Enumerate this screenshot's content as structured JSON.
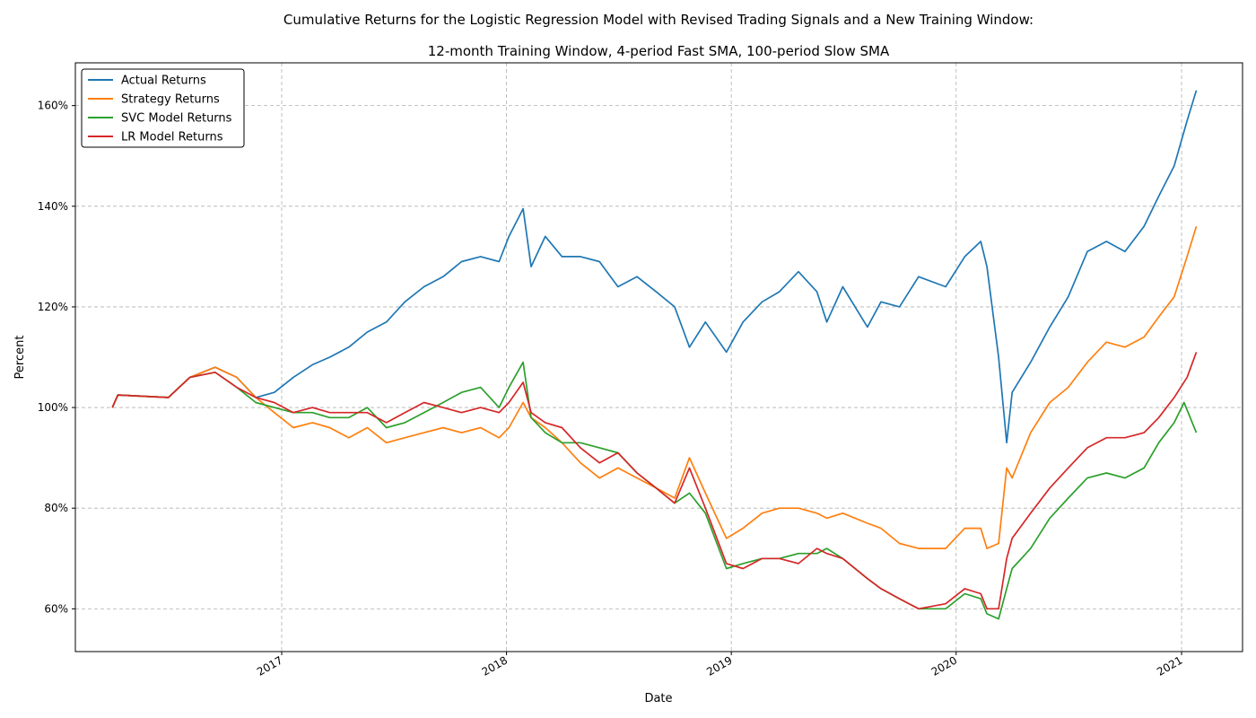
{
  "chart_data": {
    "type": "line",
    "title": "Cumulative Returns for the Logistic Regression Model with Revised Trading Signals and a New Training Window:",
    "subtitle": "12-month Training Window, 4-period Fast SMA, 100-period Slow SMA",
    "xlabel": "Date",
    "ylabel": "Percent",
    "x_ticks": [
      "2017",
      "2018",
      "2019",
      "2020",
      "2021"
    ],
    "y_ticks": [
      "60%",
      "80%",
      "100%",
      "120%",
      "140%",
      "160%"
    ],
    "y_tick_values": [
      60,
      80,
      100,
      120,
      140,
      160
    ],
    "xlim": [
      "2016-02-01",
      "2021-04-10"
    ],
    "ylim": [
      51.5,
      168.5
    ],
    "grid": true,
    "legend_position": "top-left",
    "series": [
      {
        "name": "Actual Returns",
        "color": "#1f77b4",
        "points": [
          [
            "2016-04-01",
            100
          ],
          [
            "2016-04-10",
            102.5
          ],
          [
            "2016-07-01",
            102
          ],
          [
            "2016-08-05",
            106
          ],
          [
            "2016-09-15",
            108
          ],
          [
            "2016-10-20",
            106
          ],
          [
            "2016-11-20",
            102
          ],
          [
            "2016-12-20",
            103
          ],
          [
            "2017-01-20",
            106
          ],
          [
            "2017-02-20",
            108.5
          ],
          [
            "2017-03-20",
            110
          ],
          [
            "2017-04-20",
            112
          ],
          [
            "2017-05-20",
            115
          ],
          [
            "2017-06-20",
            117
          ],
          [
            "2017-07-20",
            121
          ],
          [
            "2017-08-20",
            124
          ],
          [
            "2017-09-20",
            126
          ],
          [
            "2017-10-20",
            129
          ],
          [
            "2017-11-20",
            130
          ],
          [
            "2017-12-20",
            129
          ],
          [
            "2018-01-05",
            134
          ],
          [
            "2018-01-28",
            139.5
          ],
          [
            "2018-02-10",
            128
          ],
          [
            "2018-03-05",
            134
          ],
          [
            "2018-04-01",
            130
          ],
          [
            "2018-05-01",
            130
          ],
          [
            "2018-06-01",
            129
          ],
          [
            "2018-07-01",
            124
          ],
          [
            "2018-08-01",
            126
          ],
          [
            "2018-09-01",
            123
          ],
          [
            "2018-10-01",
            120
          ],
          [
            "2018-10-25",
            112
          ],
          [
            "2018-11-20",
            117
          ],
          [
            "2018-12-24",
            111
          ],
          [
            "2019-01-20",
            117
          ],
          [
            "2019-02-20",
            121
          ],
          [
            "2019-03-20",
            123
          ],
          [
            "2019-04-20",
            127
          ],
          [
            "2019-05-20",
            123
          ],
          [
            "2019-06-05",
            117
          ],
          [
            "2019-07-01",
            124
          ],
          [
            "2019-08-10",
            116
          ],
          [
            "2019-09-01",
            121
          ],
          [
            "2019-10-01",
            120
          ],
          [
            "2019-11-01",
            126
          ],
          [
            "2019-12-15",
            124
          ],
          [
            "2020-01-15",
            130
          ],
          [
            "2020-02-10",
            133
          ],
          [
            "2020-02-20",
            128
          ],
          [
            "2020-03-10",
            110
          ],
          [
            "2020-03-23",
            93
          ],
          [
            "2020-04-01",
            103
          ],
          [
            "2020-05-01",
            109
          ],
          [
            "2020-06-01",
            116
          ],
          [
            "2020-07-01",
            122
          ],
          [
            "2020-08-01",
            131
          ],
          [
            "2020-09-01",
            133
          ],
          [
            "2020-10-01",
            131
          ],
          [
            "2020-11-01",
            136
          ],
          [
            "2020-11-25",
            142
          ],
          [
            "2020-12-20",
            148
          ],
          [
            "2021-01-10",
            157
          ],
          [
            "2021-01-25",
            163
          ]
        ]
      },
      {
        "name": "Strategy Returns",
        "color": "#ff7f0e",
        "points": [
          [
            "2016-04-01",
            100
          ],
          [
            "2016-04-10",
            102.5
          ],
          [
            "2016-07-01",
            102
          ],
          [
            "2016-08-05",
            106
          ],
          [
            "2016-09-15",
            108
          ],
          [
            "2016-10-20",
            106
          ],
          [
            "2016-11-20",
            102
          ],
          [
            "2016-12-20",
            99
          ],
          [
            "2017-01-20",
            96
          ],
          [
            "2017-02-20",
            97
          ],
          [
            "2017-03-20",
            96
          ],
          [
            "2017-04-20",
            94
          ],
          [
            "2017-05-20",
            96
          ],
          [
            "2017-06-20",
            93
          ],
          [
            "2017-07-20",
            94
          ],
          [
            "2017-08-20",
            95
          ],
          [
            "2017-09-20",
            96
          ],
          [
            "2017-10-20",
            95
          ],
          [
            "2017-11-20",
            96
          ],
          [
            "2017-12-20",
            94
          ],
          [
            "2018-01-05",
            96
          ],
          [
            "2018-01-28",
            101
          ],
          [
            "2018-02-10",
            98
          ],
          [
            "2018-03-05",
            96
          ],
          [
            "2018-04-01",
            93
          ],
          [
            "2018-05-01",
            89
          ],
          [
            "2018-06-01",
            86
          ],
          [
            "2018-07-01",
            88
          ],
          [
            "2018-08-01",
            86
          ],
          [
            "2018-09-01",
            84
          ],
          [
            "2018-10-01",
            82
          ],
          [
            "2018-10-25",
            90
          ],
          [
            "2018-11-20",
            83
          ],
          [
            "2018-12-24",
            74
          ],
          [
            "2019-01-20",
            76
          ],
          [
            "2019-02-20",
            79
          ],
          [
            "2019-03-20",
            80
          ],
          [
            "2019-04-20",
            80
          ],
          [
            "2019-05-20",
            79
          ],
          [
            "2019-06-05",
            78
          ],
          [
            "2019-07-01",
            79
          ],
          [
            "2019-08-10",
            77
          ],
          [
            "2019-09-01",
            76
          ],
          [
            "2019-10-01",
            73
          ],
          [
            "2019-11-01",
            72
          ],
          [
            "2019-12-15",
            72
          ],
          [
            "2020-01-15",
            76
          ],
          [
            "2020-02-10",
            76
          ],
          [
            "2020-02-20",
            72
          ],
          [
            "2020-03-10",
            73
          ],
          [
            "2020-03-23",
            88
          ],
          [
            "2020-04-01",
            86
          ],
          [
            "2020-05-01",
            95
          ],
          [
            "2020-06-01",
            101
          ],
          [
            "2020-07-01",
            104
          ],
          [
            "2020-08-01",
            109
          ],
          [
            "2020-09-01",
            113
          ],
          [
            "2020-10-01",
            112
          ],
          [
            "2020-11-01",
            114
          ],
          [
            "2020-11-25",
            118
          ],
          [
            "2020-12-20",
            122
          ],
          [
            "2021-01-10",
            130
          ],
          [
            "2021-01-25",
            136
          ]
        ]
      },
      {
        "name": "SVC Model Returns",
        "color": "#2ca02c",
        "points": [
          [
            "2016-04-01",
            100
          ],
          [
            "2016-04-10",
            102.5
          ],
          [
            "2016-07-01",
            102
          ],
          [
            "2016-08-05",
            106
          ],
          [
            "2016-09-15",
            107
          ],
          [
            "2016-10-20",
            104
          ],
          [
            "2016-11-20",
            101
          ],
          [
            "2016-12-20",
            100
          ],
          [
            "2017-01-20",
            99
          ],
          [
            "2017-02-20",
            99
          ],
          [
            "2017-03-20",
            98
          ],
          [
            "2017-04-20",
            98
          ],
          [
            "2017-05-20",
            100
          ],
          [
            "2017-06-20",
            96
          ],
          [
            "2017-07-20",
            97
          ],
          [
            "2017-08-20",
            99
          ],
          [
            "2017-09-20",
            101
          ],
          [
            "2017-10-20",
            103
          ],
          [
            "2017-11-20",
            104
          ],
          [
            "2017-12-20",
            100
          ],
          [
            "2018-01-05",
            104
          ],
          [
            "2018-01-28",
            109
          ],
          [
            "2018-02-10",
            98
          ],
          [
            "2018-03-05",
            95
          ],
          [
            "2018-04-01",
            93
          ],
          [
            "2018-05-01",
            93
          ],
          [
            "2018-06-01",
            92
          ],
          [
            "2018-07-01",
            91
          ],
          [
            "2018-08-01",
            87
          ],
          [
            "2018-09-01",
            84
          ],
          [
            "2018-10-01",
            81
          ],
          [
            "2018-10-25",
            83
          ],
          [
            "2018-11-20",
            79
          ],
          [
            "2018-12-24",
            68
          ],
          [
            "2019-01-20",
            69
          ],
          [
            "2019-02-20",
            70
          ],
          [
            "2019-03-20",
            70
          ],
          [
            "2019-04-20",
            71
          ],
          [
            "2019-05-20",
            71
          ],
          [
            "2019-06-05",
            72
          ],
          [
            "2019-07-01",
            70
          ],
          [
            "2019-08-10",
            66
          ],
          [
            "2019-09-01",
            64
          ],
          [
            "2019-10-01",
            62
          ],
          [
            "2019-11-01",
            60
          ],
          [
            "2019-12-15",
            60
          ],
          [
            "2020-01-15",
            63
          ],
          [
            "2020-02-10",
            62
          ],
          [
            "2020-02-20",
            59
          ],
          [
            "2020-03-10",
            58
          ],
          [
            "2020-03-23",
            64
          ],
          [
            "2020-04-01",
            68
          ],
          [
            "2020-05-01",
            72
          ],
          [
            "2020-06-01",
            78
          ],
          [
            "2020-07-01",
            82
          ],
          [
            "2020-08-01",
            86
          ],
          [
            "2020-09-01",
            87
          ],
          [
            "2020-10-01",
            86
          ],
          [
            "2020-11-01",
            88
          ],
          [
            "2020-11-25",
            93
          ],
          [
            "2020-12-20",
            97
          ],
          [
            "2021-01-05",
            101
          ],
          [
            "2021-01-25",
            95
          ]
        ]
      },
      {
        "name": "LR Model Returns",
        "color": "#d62728",
        "points": [
          [
            "2016-04-01",
            100
          ],
          [
            "2016-04-10",
            102.5
          ],
          [
            "2016-07-01",
            102
          ],
          [
            "2016-08-05",
            106
          ],
          [
            "2016-09-15",
            107
          ],
          [
            "2016-10-20",
            104
          ],
          [
            "2016-11-20",
            102
          ],
          [
            "2016-12-20",
            101
          ],
          [
            "2017-01-20",
            99
          ],
          [
            "2017-02-20",
            100
          ],
          [
            "2017-03-20",
            99
          ],
          [
            "2017-04-20",
            99
          ],
          [
            "2017-05-20",
            99
          ],
          [
            "2017-06-20",
            97
          ],
          [
            "2017-07-20",
            99
          ],
          [
            "2017-08-20",
            101
          ],
          [
            "2017-09-20",
            100
          ],
          [
            "2017-10-20",
            99
          ],
          [
            "2017-11-20",
            100
          ],
          [
            "2017-12-20",
            99
          ],
          [
            "2018-01-05",
            101
          ],
          [
            "2018-01-28",
            105
          ],
          [
            "2018-02-10",
            99
          ],
          [
            "2018-03-05",
            97
          ],
          [
            "2018-04-01",
            96
          ],
          [
            "2018-05-01",
            92
          ],
          [
            "2018-06-01",
            89
          ],
          [
            "2018-07-01",
            91
          ],
          [
            "2018-08-01",
            87
          ],
          [
            "2018-09-01",
            84
          ],
          [
            "2018-10-01",
            81
          ],
          [
            "2018-10-25",
            88
          ],
          [
            "2018-11-20",
            80
          ],
          [
            "2018-12-24",
            69
          ],
          [
            "2019-01-20",
            68
          ],
          [
            "2019-02-20",
            70
          ],
          [
            "2019-03-20",
            70
          ],
          [
            "2019-04-20",
            69
          ],
          [
            "2019-05-20",
            72
          ],
          [
            "2019-06-05",
            71
          ],
          [
            "2019-07-01",
            70
          ],
          [
            "2019-08-10",
            66
          ],
          [
            "2019-09-01",
            64
          ],
          [
            "2019-10-01",
            62
          ],
          [
            "2019-11-01",
            60
          ],
          [
            "2019-12-15",
            61
          ],
          [
            "2020-01-15",
            64
          ],
          [
            "2020-02-10",
            63
          ],
          [
            "2020-02-20",
            60
          ],
          [
            "2020-03-10",
            60
          ],
          [
            "2020-03-23",
            70
          ],
          [
            "2020-04-01",
            74
          ],
          [
            "2020-05-01",
            79
          ],
          [
            "2020-06-01",
            84
          ],
          [
            "2020-07-01",
            88
          ],
          [
            "2020-08-01",
            92
          ],
          [
            "2020-09-01",
            94
          ],
          [
            "2020-10-01",
            94
          ],
          [
            "2020-11-01",
            95
          ],
          [
            "2020-11-25",
            98
          ],
          [
            "2020-12-20",
            102
          ],
          [
            "2021-01-10",
            106
          ],
          [
            "2021-01-25",
            111
          ]
        ]
      }
    ]
  }
}
